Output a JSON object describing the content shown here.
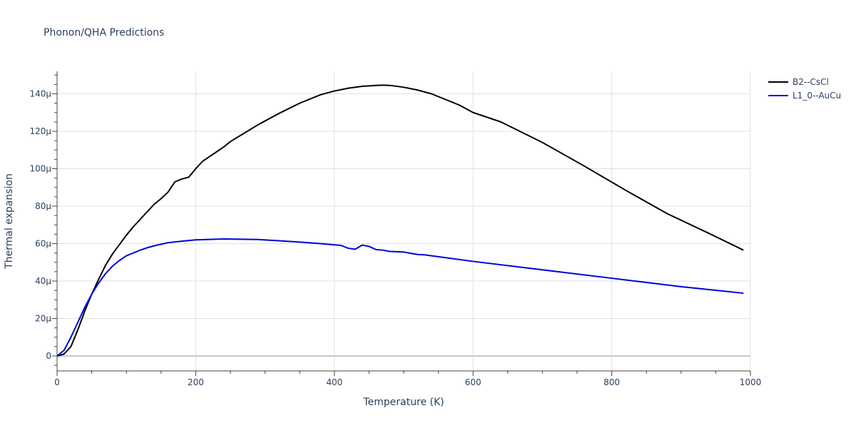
{
  "chart_data": {
    "type": "line",
    "title": "Phonon/QHA Predictions",
    "xlabel": "Temperature (K)",
    "ylabel": "Thermal expansion",
    "xlim": [
      0,
      1000
    ],
    "ylim": [
      -8,
      152
    ],
    "x_ticks": [
      0,
      200,
      400,
      600,
      800,
      1000
    ],
    "x_tick_labels": [
      "0",
      "200",
      "400",
      "600",
      "800",
      "1000"
    ],
    "y_ticks": [
      0,
      20,
      40,
      60,
      80,
      100,
      120,
      140
    ],
    "y_tick_labels": [
      "0",
      "20μ",
      "40μ",
      "60μ",
      "80μ",
      "100μ",
      "120μ",
      "140μ"
    ],
    "grid": true,
    "legend_position": "top-right",
    "series": [
      {
        "name": "B2--CsCl",
        "color": "#000000",
        "x": [
          0,
          10,
          20,
          30,
          40,
          50,
          60,
          70,
          80,
          90,
          100,
          110,
          120,
          130,
          140,
          150,
          160,
          170,
          180,
          190,
          200,
          210,
          220,
          230,
          240,
          250,
          270,
          290,
          320,
          350,
          380,
          400,
          420,
          440,
          460,
          470,
          480,
          500,
          520,
          540,
          560,
          580,
          600,
          640,
          700,
          760,
          820,
          880,
          940,
          990
        ],
        "y": [
          0,
          1,
          5,
          14,
          24,
          33,
          41,
          48.5,
          54.5,
          59.5,
          64.5,
          69,
          73,
          77,
          81,
          84,
          87.5,
          93,
          94.5,
          95.5,
          100,
          104,
          106.5,
          109,
          111.5,
          114.5,
          119,
          123.5,
          129.5,
          135,
          139.5,
          141.5,
          143,
          144,
          144.5,
          144.6,
          144.5,
          143.5,
          142,
          140,
          137,
          134,
          130,
          125,
          114,
          101.5,
          88.5,
          76,
          65.5,
          56.5
        ]
      },
      {
        "name": "L1_0--AuCu",
        "color": "#0000dd",
        "x": [
          0,
          10,
          20,
          30,
          40,
          50,
          60,
          70,
          80,
          90,
          100,
          110,
          120,
          130,
          140,
          160,
          180,
          200,
          240,
          290,
          350,
          380,
          410,
          420,
          430,
          440,
          450,
          460,
          470,
          480,
          500,
          510,
          520,
          530,
          600,
          700,
          800,
          900,
          990
        ],
        "y": [
          0,
          3,
          10,
          18,
          26,
          33,
          39,
          44,
          48,
          51,
          53.5,
          55,
          56.5,
          57.8,
          58.8,
          60.5,
          61.3,
          62,
          62.5,
          62.2,
          60.8,
          60,
          59,
          57.5,
          57,
          59.2,
          58.5,
          56.8,
          56.5,
          55.8,
          55.5,
          54.8,
          54.2,
          54,
          50.5,
          46,
          41.5,
          37,
          33.5
        ]
      }
    ]
  }
}
